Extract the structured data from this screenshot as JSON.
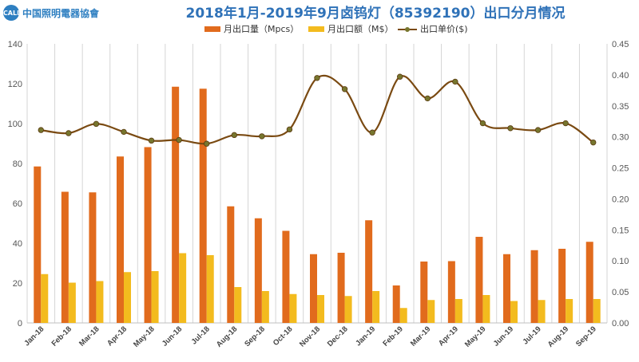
{
  "header": {
    "logo_mark": "CALI",
    "logo_text": "中国照明電器協會",
    "title": "2018年1月-2019年9月卤钨灯（85392190）出口分月情况"
  },
  "colors": {
    "volume": "#e16b1d",
    "value": "#f3bb1e",
    "price_line": "#7a4a12",
    "price_marker": "#77762e",
    "grid": "#d6d6d6",
    "title": "#2f72b8"
  },
  "chart_data": {
    "type": "bar",
    "categories": [
      "Jan-18",
      "Feb-18",
      "Mar-18",
      "Apr-18",
      "May-18",
      "Jun-18",
      "Jul-18",
      "Aug-18",
      "Sep-18",
      "Oct-18",
      "Nov-18",
      "Dec-18",
      "Jan-19",
      "Feb-19",
      "Mar-19",
      "Apr-19",
      "May-19",
      "Jun-19",
      "Jul-19",
      "Aug-19",
      "Sep-19"
    ],
    "series": [
      {
        "name": "月出口量（Mpcs）",
        "kind": "bar",
        "axis": "left",
        "color": "#e16b1d",
        "values": [
          78.5,
          65.8,
          65.5,
          83.5,
          88.2,
          118.5,
          117.5,
          58.5,
          52.5,
          46.2,
          34.5,
          35.2,
          51.5,
          18.8,
          30.8,
          31.0,
          43.2,
          34.5,
          36.5,
          37.2,
          40.7
        ]
      },
      {
        "name": "月出口额（M$）",
        "kind": "bar",
        "axis": "left",
        "color": "#f3bb1e",
        "values": [
          24.5,
          20.2,
          21.0,
          25.5,
          26.0,
          35.0,
          34.0,
          18.0,
          16.0,
          14.5,
          14.0,
          13.5,
          16.0,
          7.5,
          11.5,
          12.0,
          14.0,
          11.0,
          11.5,
          12.0,
          12.0
        ]
      },
      {
        "name": "出口单价($)",
        "kind": "line",
        "axis": "right",
        "color": "#7a4a12",
        "values": [
          0.311,
          0.306,
          0.321,
          0.308,
          0.294,
          0.295,
          0.289,
          0.303,
          0.301,
          0.312,
          0.395,
          0.377,
          0.307,
          0.397,
          0.362,
          0.389,
          0.322,
          0.314,
          0.311,
          0.322,
          0.291
        ]
      }
    ],
    "y_left": {
      "min": 0,
      "max": 140,
      "ticks": [
        0,
        20,
        40,
        60,
        80,
        100,
        120,
        140
      ]
    },
    "y_right": {
      "min": 0,
      "max": 0.45,
      "ticks": [
        "0.00",
        "0.05",
        "0.10",
        "0.15",
        "0.20",
        "0.25",
        "0.30",
        "0.35",
        "0.40",
        "0.45"
      ]
    },
    "grid": "vertical",
    "legend_position": "top-center"
  }
}
